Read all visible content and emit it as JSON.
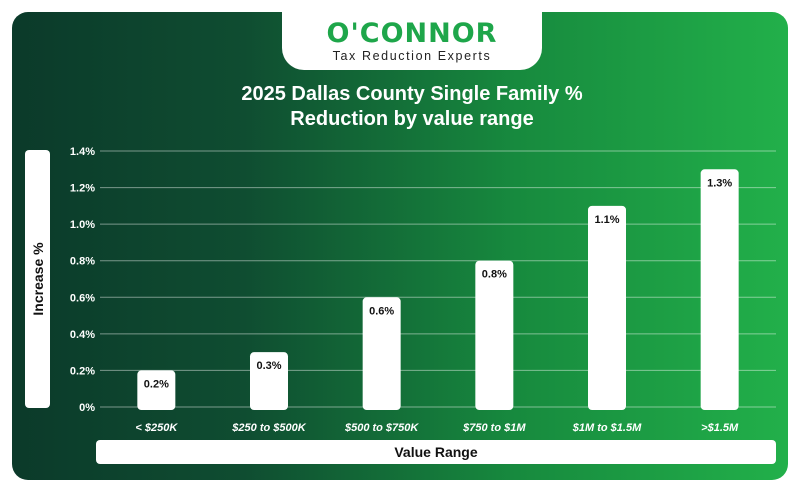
{
  "brand": {
    "logo_text": "O'CONNOR",
    "tagline": "Tax Reduction Experts"
  },
  "colors": {
    "gradient_left": "#0b3a2a",
    "gradient_right": "#22b04a",
    "brand_green": "#1ea64a",
    "bar_fill": "#ffffff",
    "grid": "#ffffff"
  },
  "chart_data": {
    "type": "bar",
    "title_line1": "2025 Dallas County Single Family %",
    "title_line2": "Reduction by value range",
    "xlabel": "Value Range",
    "ylabel": "Increase %",
    "categories": [
      "< $250K",
      "$250 to $500K",
      "$500 to $750K",
      "$750 to $1M",
      "$1M to $1.5M",
      ">$1.5M"
    ],
    "values": [
      0.2,
      0.3,
      0.6,
      0.8,
      1.1,
      1.3
    ],
    "data_labels": [
      "0.2%",
      "0.3%",
      "0.6%",
      "0.8%",
      "1.1%",
      "1.3%"
    ],
    "y_ticks": [
      "0%",
      "0.2%",
      "0.4%",
      "0.6%",
      "0.8%",
      "1.0%",
      "1.2%",
      "1.4%"
    ],
    "ylim": [
      0,
      1.4
    ],
    "grid": true,
    "legend": "none"
  }
}
